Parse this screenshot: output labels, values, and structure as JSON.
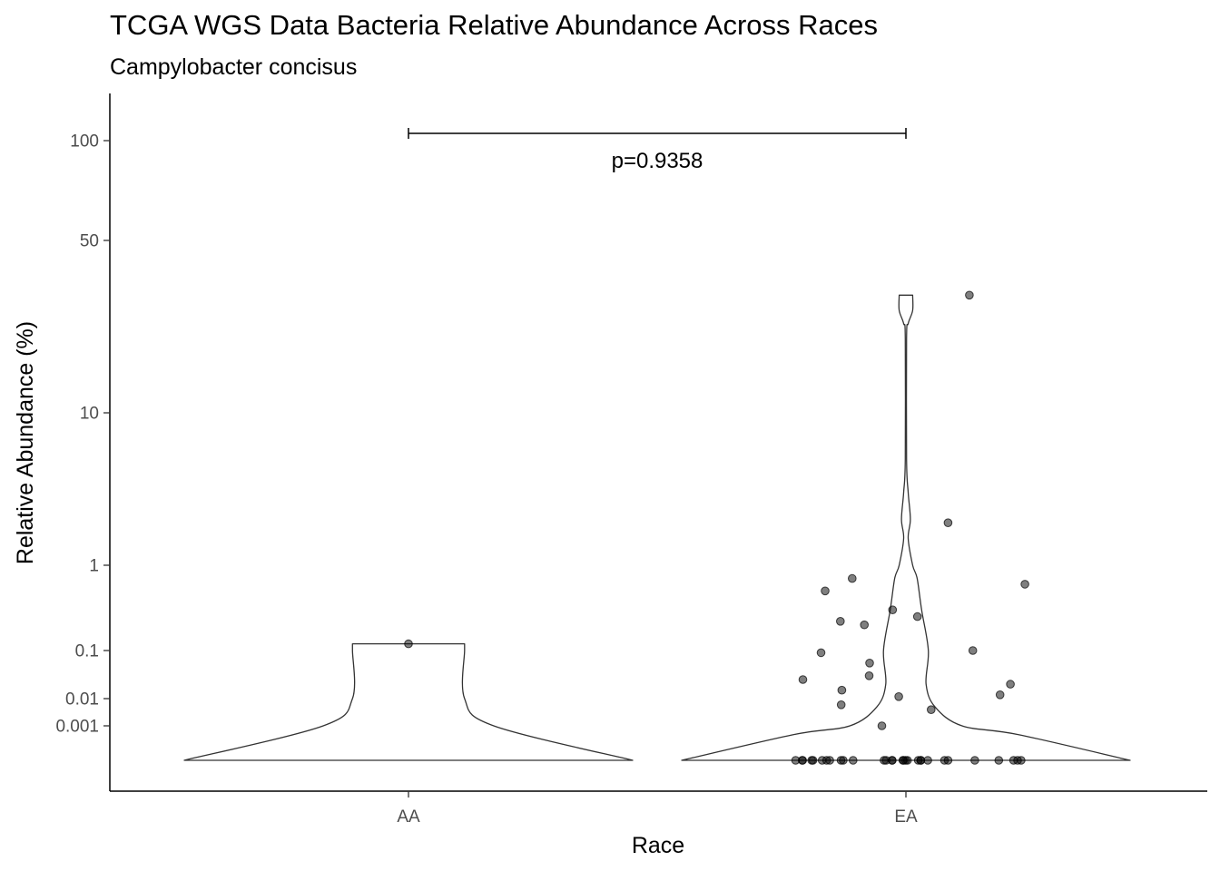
{
  "chart_data": {
    "type": "violin",
    "title": "TCGA WGS Data Bacteria Relative Abundance Across Races",
    "subtitle": "Campylobacter concisus",
    "xlabel": "Race",
    "ylabel": "Relative Abundance (%)",
    "categories": [
      "AA",
      "EA"
    ],
    "y_scale": "pseudo-log",
    "y_ticks": [
      0.001,
      0.01,
      0.1,
      1,
      10,
      50,
      100
    ],
    "y_tick_labels": [
      "0.001",
      "0.01",
      "0.1",
      "1",
      "10",
      "50",
      "100"
    ],
    "comparison": {
      "groups": [
        "AA",
        "EA"
      ],
      "label": "p=0.9358"
    },
    "violins": [
      {
        "group": "AA",
        "profile": [
          [
            0,
            1.0
          ],
          [
            0.001,
            0.38
          ],
          [
            0.01,
            0.25
          ],
          [
            0.1,
            0.25
          ],
          [
            0.12,
            0.25
          ]
        ]
      },
      {
        "group": "EA",
        "profile": [
          [
            0,
            1.0
          ],
          [
            0.0005,
            0.5
          ],
          [
            0.001,
            0.25
          ],
          [
            0.005,
            0.13
          ],
          [
            0.02,
            0.09
          ],
          [
            0.1,
            0.1
          ],
          [
            0.3,
            0.07
          ],
          [
            0.7,
            0.05
          ],
          [
            1,
            0.03
          ],
          [
            1.5,
            0.01
          ],
          [
            2,
            0.02
          ],
          [
            3,
            0.01
          ],
          [
            5,
            0.003
          ],
          [
            20,
            0.003
          ],
          [
            23,
            0.01
          ],
          [
            26,
            0.03
          ],
          [
            30,
            0.03
          ]
        ]
      }
    ],
    "points": [
      {
        "group": "AA",
        "values": [
          0.12
        ]
      },
      {
        "group": "EA",
        "values": [
          0,
          0,
          0,
          0,
          0,
          0,
          0,
          0,
          0,
          0,
          0,
          0,
          0,
          0,
          0,
          0,
          0,
          0,
          0,
          0,
          0,
          0,
          0,
          0,
          0,
          0,
          0,
          0,
          0,
          0,
          1.9,
          0.7,
          0.5,
          0.6,
          0.3,
          0.22,
          0.25,
          0.2,
          0.09,
          0.1,
          0.055,
          0.03,
          0.025,
          0.02,
          0.015,
          0.012,
          0.011,
          0.006,
          0.004,
          0.001,
          30
        ]
      }
    ]
  }
}
